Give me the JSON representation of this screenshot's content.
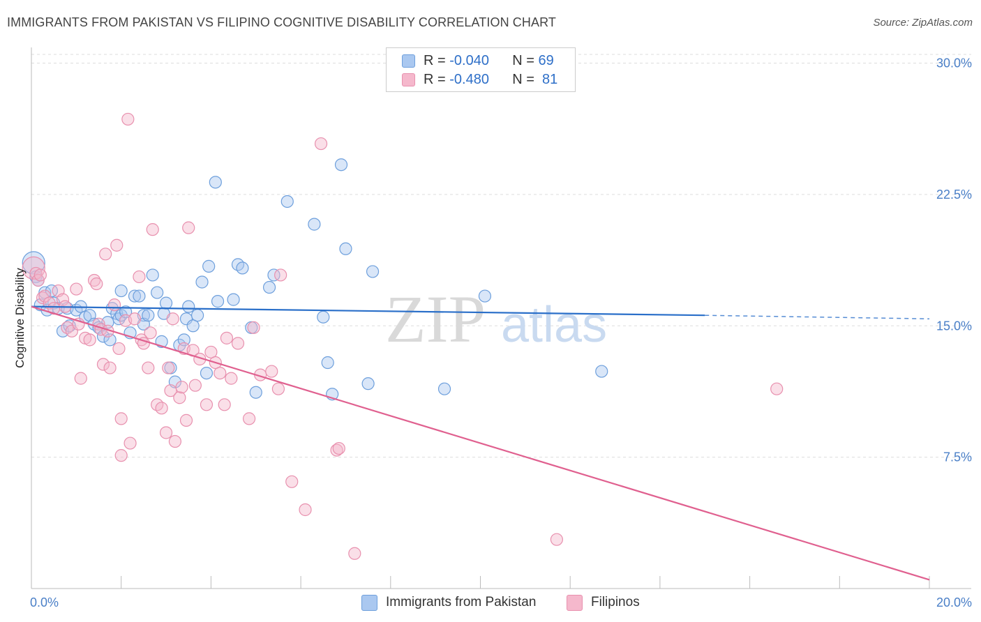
{
  "title": "IMMIGRANTS FROM PAKISTAN VS FILIPINO COGNITIVE DISABILITY CORRELATION CHART",
  "source": "Source: ZipAtlas.com",
  "legend": {
    "rows": [
      {
        "r_label": "R = ",
        "r_value": "-0.040",
        "n_label": "N = ",
        "n_value": "69"
      },
      {
        "r_label": "R = ",
        "r_value": "-0.480",
        "n_label": "N = ",
        "n_value": " 81"
      }
    ]
  },
  "watermark": {
    "zip": "ZIP",
    "atlas": "atlas"
  },
  "colors": {
    "blue_fill": "#aac8f0",
    "blue_stroke": "#6d9fdc",
    "blue_line": "#2a6fc9",
    "pink_fill": "#f5b8cc",
    "pink_stroke": "#e890ae",
    "pink_line": "#e0608f",
    "axis_text": "#4a7fc7",
    "grid": "#dddddd"
  },
  "chart_data": {
    "type": "scatter",
    "title": "IMMIGRANTS FROM PAKISTAN VS FILIPINO COGNITIVE DISABILITY CORRELATION CHART",
    "xlabel": "",
    "ylabel": "Cognitive Disability",
    "xlim": [
      0,
      20
    ],
    "ylim": [
      0,
      30.5
    ],
    "x_tick_labels": [
      "0.0%",
      "20.0%"
    ],
    "y_ticks": [
      7.5,
      15.0,
      22.5,
      30.0
    ],
    "y_tick_labels": [
      "7.5%",
      "15.0%",
      "22.5%",
      "30.0%"
    ],
    "grid": true,
    "legend_position": "top-center",
    "series": [
      {
        "name": "Immigrants from Pakistan",
        "color": "blue",
        "trend": {
          "x0": 0,
          "y0": 16.1,
          "x1": 15.0,
          "y1": 15.6,
          "dashed_to_x": 20,
          "dashed_to_y": 15.4
        },
        "points": [
          {
            "x": 0.05,
            "y": 18.6,
            "big": true
          },
          {
            "x": 0.1,
            "y": 17.8
          },
          {
            "x": 0.15,
            "y": 17.6
          },
          {
            "x": 0.2,
            "y": 16.2
          },
          {
            "x": 0.3,
            "y": 16.9
          },
          {
            "x": 0.35,
            "y": 15.9
          },
          {
            "x": 0.45,
            "y": 17.0
          },
          {
            "x": 0.5,
            "y": 16.3
          },
          {
            "x": 0.6,
            "y": 16.0
          },
          {
            "x": 0.7,
            "y": 14.7
          },
          {
            "x": 0.8,
            "y": 16.0
          },
          {
            "x": 0.85,
            "y": 15.0
          },
          {
            "x": 1.0,
            "y": 15.9
          },
          {
            "x": 1.1,
            "y": 16.1
          },
          {
            "x": 1.2,
            "y": 15.5
          },
          {
            "x": 1.3,
            "y": 15.6
          },
          {
            "x": 1.4,
            "y": 15.1
          },
          {
            "x": 1.5,
            "y": 14.9
          },
          {
            "x": 1.6,
            "y": 14.4
          },
          {
            "x": 1.7,
            "y": 15.2
          },
          {
            "x": 1.75,
            "y": 14.2
          },
          {
            "x": 1.8,
            "y": 16.0
          },
          {
            "x": 1.9,
            "y": 15.7
          },
          {
            "x": 1.95,
            "y": 15.4
          },
          {
            "x": 2.0,
            "y": 15.6
          },
          {
            "x": 2.0,
            "y": 17.0
          },
          {
            "x": 2.1,
            "y": 15.8
          },
          {
            "x": 2.2,
            "y": 14.6
          },
          {
            "x": 2.3,
            "y": 16.7
          },
          {
            "x": 2.4,
            "y": 16.7
          },
          {
            "x": 2.5,
            "y": 15.6
          },
          {
            "x": 2.5,
            "y": 15.1
          },
          {
            "x": 2.6,
            "y": 15.6
          },
          {
            "x": 2.7,
            "y": 17.9
          },
          {
            "x": 2.8,
            "y": 16.9
          },
          {
            "x": 2.9,
            "y": 14.1
          },
          {
            "x": 2.95,
            "y": 15.7
          },
          {
            "x": 3.0,
            "y": 16.3
          },
          {
            "x": 3.1,
            "y": 12.6
          },
          {
            "x": 3.2,
            "y": 11.8
          },
          {
            "x": 3.3,
            "y": 13.9
          },
          {
            "x": 3.4,
            "y": 14.2
          },
          {
            "x": 3.45,
            "y": 15.4
          },
          {
            "x": 3.5,
            "y": 16.1
          },
          {
            "x": 3.6,
            "y": 15.0
          },
          {
            "x": 3.7,
            "y": 15.6
          },
          {
            "x": 3.8,
            "y": 17.5
          },
          {
            "x": 3.9,
            "y": 12.3
          },
          {
            "x": 3.95,
            "y": 18.4
          },
          {
            "x": 4.1,
            "y": 23.2
          },
          {
            "x": 4.15,
            "y": 16.4
          },
          {
            "x": 4.5,
            "y": 16.5
          },
          {
            "x": 4.6,
            "y": 18.5
          },
          {
            "x": 4.7,
            "y": 18.3
          },
          {
            "x": 4.9,
            "y": 14.9
          },
          {
            "x": 5.0,
            "y": 11.2
          },
          {
            "x": 5.3,
            "y": 17.2
          },
          {
            "x": 5.4,
            "y": 17.9
          },
          {
            "x": 5.7,
            "y": 22.1
          },
          {
            "x": 6.3,
            "y": 20.8
          },
          {
            "x": 6.5,
            "y": 15.5
          },
          {
            "x": 6.6,
            "y": 12.9
          },
          {
            "x": 6.7,
            "y": 11.1
          },
          {
            "x": 6.9,
            "y": 24.2
          },
          {
            "x": 7.0,
            "y": 19.4
          },
          {
            "x": 7.5,
            "y": 11.7
          },
          {
            "x": 7.6,
            "y": 18.1
          },
          {
            "x": 9.2,
            "y": 11.4
          },
          {
            "x": 10.1,
            "y": 16.7
          },
          {
            "x": 12.7,
            "y": 12.4
          }
        ]
      },
      {
        "name": "Filipinos",
        "color": "pink",
        "trend": {
          "x0": 0,
          "y0": 16.1,
          "x1": 20,
          "y1": 0.5
        },
        "points": [
          {
            "x": 0.05,
            "y": 18.3,
            "big": true
          },
          {
            "x": 0.1,
            "y": 18.0
          },
          {
            "x": 0.15,
            "y": 17.6
          },
          {
            "x": 0.2,
            "y": 17.9
          },
          {
            "x": 0.25,
            "y": 16.6
          },
          {
            "x": 0.3,
            "y": 16.7
          },
          {
            "x": 0.4,
            "y": 16.3
          },
          {
            "x": 0.5,
            "y": 16.0
          },
          {
            "x": 0.6,
            "y": 17.0
          },
          {
            "x": 0.7,
            "y": 16.5
          },
          {
            "x": 0.75,
            "y": 16.1
          },
          {
            "x": 0.8,
            "y": 14.9
          },
          {
            "x": 0.9,
            "y": 14.7
          },
          {
            "x": 1.0,
            "y": 17.1
          },
          {
            "x": 1.05,
            "y": 15.1
          },
          {
            "x": 1.1,
            "y": 12.0
          },
          {
            "x": 1.2,
            "y": 14.3
          },
          {
            "x": 1.3,
            "y": 14.2
          },
          {
            "x": 1.4,
            "y": 17.6
          },
          {
            "x": 1.45,
            "y": 17.4
          },
          {
            "x": 1.5,
            "y": 15.1
          },
          {
            "x": 1.55,
            "y": 14.8
          },
          {
            "x": 1.6,
            "y": 12.8
          },
          {
            "x": 1.65,
            "y": 19.1
          },
          {
            "x": 1.7,
            "y": 14.7
          },
          {
            "x": 1.75,
            "y": 12.6
          },
          {
            "x": 1.85,
            "y": 16.2
          },
          {
            "x": 1.9,
            "y": 19.6
          },
          {
            "x": 1.95,
            "y": 13.7
          },
          {
            "x": 2.0,
            "y": 9.7
          },
          {
            "x": 2.0,
            "y": 7.6
          },
          {
            "x": 2.1,
            "y": 15.3
          },
          {
            "x": 2.15,
            "y": 26.8
          },
          {
            "x": 2.2,
            "y": 8.3
          },
          {
            "x": 2.3,
            "y": 15.4
          },
          {
            "x": 2.4,
            "y": 17.8
          },
          {
            "x": 2.45,
            "y": 14.2
          },
          {
            "x": 2.5,
            "y": 14.0
          },
          {
            "x": 2.6,
            "y": 12.6
          },
          {
            "x": 2.65,
            "y": 14.6
          },
          {
            "x": 2.7,
            "y": 20.5
          },
          {
            "x": 2.8,
            "y": 10.5
          },
          {
            "x": 2.9,
            "y": 10.3
          },
          {
            "x": 3.0,
            "y": 8.9
          },
          {
            "x": 3.05,
            "y": 12.6
          },
          {
            "x": 3.1,
            "y": 11.3
          },
          {
            "x": 3.15,
            "y": 15.4
          },
          {
            "x": 3.2,
            "y": 8.4
          },
          {
            "x": 3.3,
            "y": 10.9
          },
          {
            "x": 3.35,
            "y": 11.5
          },
          {
            "x": 3.4,
            "y": 13.7
          },
          {
            "x": 3.45,
            "y": 9.6
          },
          {
            "x": 3.5,
            "y": 20.6
          },
          {
            "x": 3.6,
            "y": 13.6
          },
          {
            "x": 3.65,
            "y": 11.6
          },
          {
            "x": 3.75,
            "y": 13.1
          },
          {
            "x": 3.9,
            "y": 10.5
          },
          {
            "x": 4.0,
            "y": 13.5
          },
          {
            "x": 4.1,
            "y": 12.9
          },
          {
            "x": 4.2,
            "y": 12.3
          },
          {
            "x": 4.3,
            "y": 10.5
          },
          {
            "x": 4.35,
            "y": 14.3
          },
          {
            "x": 4.45,
            "y": 12.0
          },
          {
            "x": 4.6,
            "y": 14.0
          },
          {
            "x": 4.85,
            "y": 9.7
          },
          {
            "x": 4.95,
            "y": 14.9
          },
          {
            "x": 5.1,
            "y": 12.2
          },
          {
            "x": 5.35,
            "y": 12.4
          },
          {
            "x": 5.5,
            "y": 11.4
          },
          {
            "x": 5.55,
            "y": 17.9
          },
          {
            "x": 5.8,
            "y": 6.1
          },
          {
            "x": 6.1,
            "y": 4.5
          },
          {
            "x": 6.45,
            "y": 25.4
          },
          {
            "x": 6.8,
            "y": 7.9
          },
          {
            "x": 6.85,
            "y": 8.0
          },
          {
            "x": 7.2,
            "y": 2.0
          },
          {
            "x": 11.7,
            "y": 2.8
          },
          {
            "x": 16.6,
            "y": 11.4
          }
        ]
      }
    ]
  }
}
